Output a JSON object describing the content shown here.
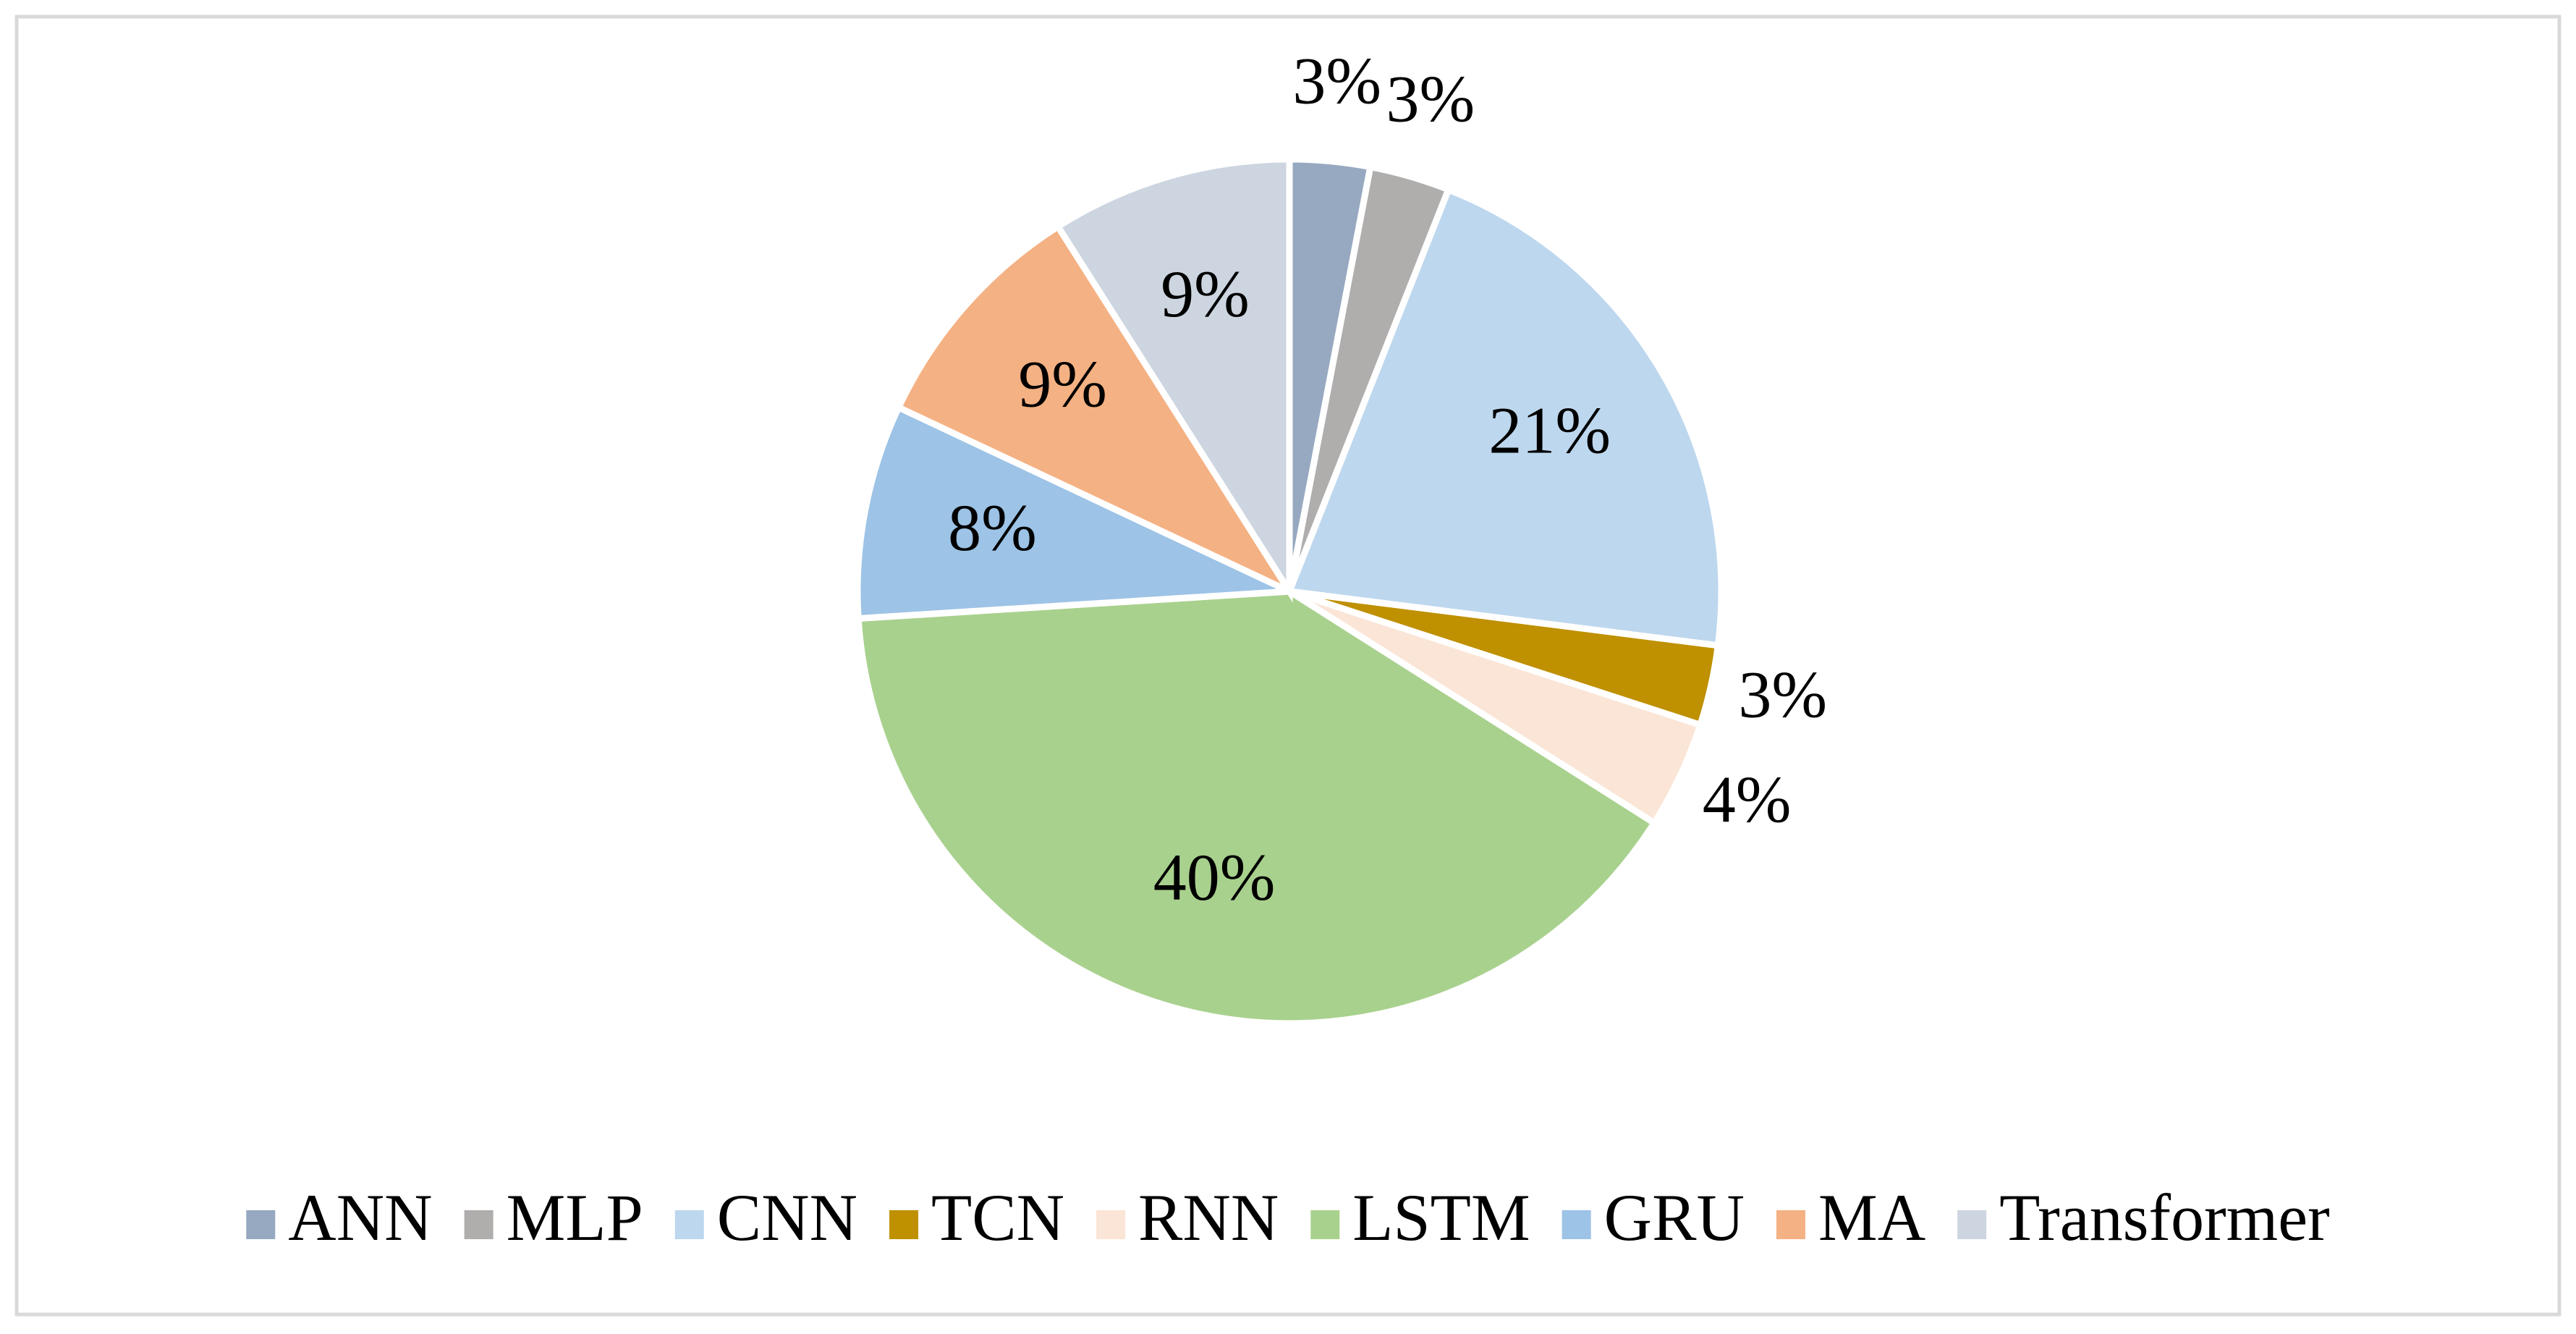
{
  "chart_data": {
    "type": "pie",
    "categories": [
      "ANN",
      "MLP",
      "CNN",
      "TCN",
      "RNN",
      "LSTM",
      "GRU",
      "MA",
      "Transformer"
    ],
    "values": [
      3,
      3,
      21,
      3,
      4,
      40,
      8,
      9,
      9
    ],
    "value_labels": [
      "3%",
      "3%",
      "21%",
      "3%",
      "4%",
      "40%",
      "8%",
      "9%",
      "9%"
    ],
    "colors": [
      "#97a9c0",
      "#b0adad",
      "#bdd7ee",
      "#bf9000",
      "#fbe5d6",
      "#a9d18e",
      "#9dc3e6",
      "#f4b183",
      "#cdd5e0"
    ],
    "legend": "bottom"
  }
}
